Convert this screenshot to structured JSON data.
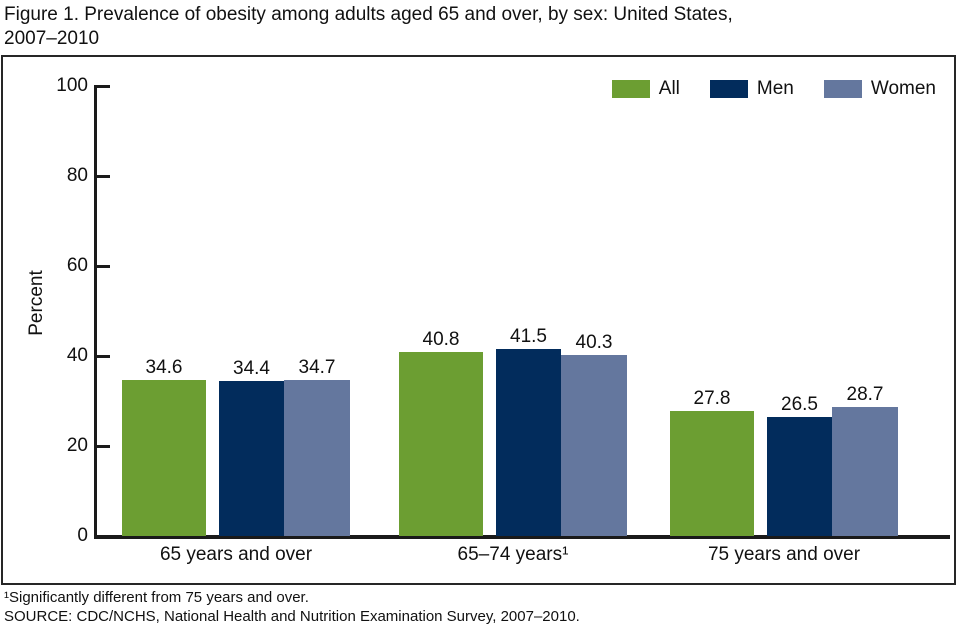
{
  "title": {
    "line1": "Figure 1. Prevalence of obesity among adults aged 65 and over, by sex: United States,",
    "line2": "2007–2010"
  },
  "chart_data": {
    "type": "bar",
    "title": "Figure 1. Prevalence of obesity among adults aged 65 and over, by sex: United States, 2007–2010",
    "categories": [
      "65 years and over",
      "65–74 years¹",
      "75 years and over"
    ],
    "series": [
      {
        "name": "All",
        "color": "#6c9e32",
        "values": [
          34.6,
          40.8,
          27.8
        ]
      },
      {
        "name": "Men",
        "color": "#022c5c",
        "values": [
          34.4,
          41.5,
          26.5
        ]
      },
      {
        "name": "Women",
        "color": "#64779e",
        "values": [
          34.7,
          40.3,
          28.7
        ]
      }
    ],
    "ylabel": "Percent",
    "ylim": [
      0,
      100
    ],
    "yticks": [
      0,
      20,
      40,
      60,
      80,
      100
    ],
    "grid": false,
    "legend_position": "top-right",
    "value_label_decimals": 1
  },
  "footnotes": {
    "note1": "¹Significantly different from 75 years and over.",
    "source": "SOURCE: CDC/NCHS, National Health and Nutrition Examination Survey, 2007–2010."
  }
}
